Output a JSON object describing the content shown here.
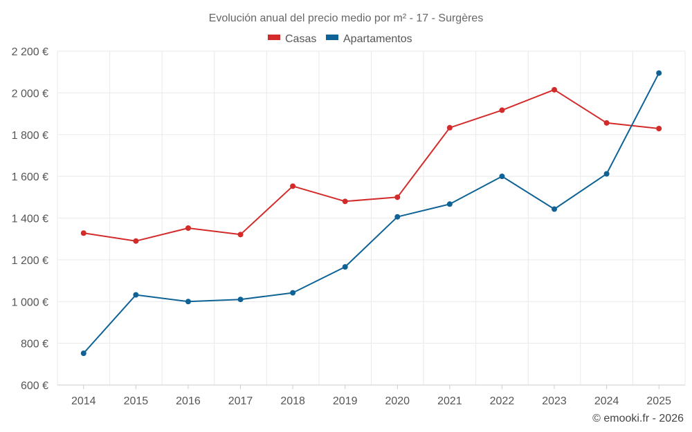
{
  "chart_data": {
    "type": "line",
    "title": "Evolución anual del precio medio por m² - 17 - Surgères",
    "categories": [
      "2014",
      "2015",
      "2016",
      "2017",
      "2018",
      "2019",
      "2020",
      "2021",
      "2022",
      "2023",
      "2024",
      "2025"
    ],
    "series": [
      {
        "name": "Casas",
        "color": "#d32a2a",
        "values": [
          1328,
          1290,
          1352,
          1321,
          1553,
          1480,
          1500,
          1833,
          1917,
          2015,
          1856,
          1829
        ]
      },
      {
        "name": "Apartamentos",
        "color": "#0e6295",
        "values": [
          752,
          1032,
          1000,
          1010,
          1042,
          1166,
          1406,
          1467,
          1600,
          1443,
          1612,
          2095
        ]
      }
    ],
    "ylim": [
      600,
      2200
    ],
    "yticks": [
      600,
      800,
      1000,
      1200,
      1400,
      1600,
      1800,
      2000,
      2200
    ],
    "ytick_labels": [
      "600 €",
      "800 €",
      "1 000 €",
      "1 200 €",
      "1 400 €",
      "1 600 €",
      "1 800 €",
      "2 000 €",
      "2 200 €"
    ],
    "xlabel": "",
    "ylabel": "",
    "grid": true,
    "legend_position": "top-center"
  },
  "credit": "© emooki.fr - 2026"
}
